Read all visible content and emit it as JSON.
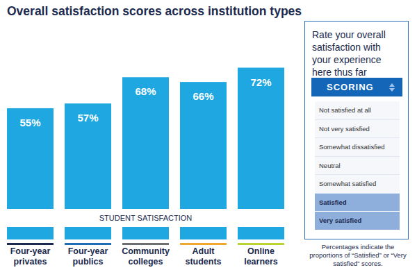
{
  "chart_data": {
    "type": "bar",
    "title": "Overall satisfaction scores across institution types",
    "xlabel": "STUDENT SATISFACTION",
    "categories": [
      "Four-year privates",
      "Four-year publics",
      "Community colleges",
      "Adult students",
      "Online learners"
    ],
    "values": [
      55,
      57,
      68,
      66,
      72
    ],
    "value_labels": [
      "55%",
      "57%",
      "68%",
      "66%",
      "72%"
    ],
    "data_labels": true,
    "color": "#1ea7e1",
    "ylim": [
      0,
      80
    ],
    "tick_labels": "x",
    "grid": false
  },
  "scoring_panel": {
    "prompt": "Rate your overall satisfaction with your experience here thus far",
    "header": "SCORING",
    "options": [
      {
        "label": "Not satisfied at all",
        "selected": false
      },
      {
        "label": "Not very satisfied",
        "selected": false
      },
      {
        "label": "Somewhat dissatisfied",
        "selected": false
      },
      {
        "label": "Neutral",
        "selected": false
      },
      {
        "label": "Somewhat satisfied",
        "selected": false
      },
      {
        "label": "Satisfied",
        "selected": true
      },
      {
        "label": "Very satisfied",
        "selected": true
      }
    ],
    "note": "Percentages indicate the proportions of “Satisfied” or “Very satisfied” scores."
  }
}
